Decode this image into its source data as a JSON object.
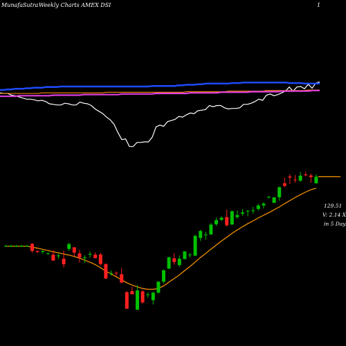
{
  "header": {
    "site": "MunafaSutra",
    "title": "Weekly Charts AMEX DSI",
    "marker": "1"
  },
  "price_panel": {
    "last_price": "129.51",
    "volume_text": "V: 2.14 X",
    "days_text": "in 5 Days"
  },
  "colors": {
    "background": "#000000",
    "up": "#00c000",
    "down": "#ff2020",
    "ema": "#ff9900",
    "line_white": "#ffffff",
    "line_blue": "#1e4bff",
    "line_magenta": "#e040e0",
    "line_orange": "#ff8c00"
  },
  "chart_data": [
    {
      "type": "line",
      "panel": "indicator",
      "series": [
        {
          "color": "#ffffff",
          "values": [
            52,
            51,
            51,
            48,
            47,
            45,
            43,
            41,
            41,
            40,
            38,
            39,
            37,
            33,
            32,
            31,
            31,
            34,
            33,
            31,
            31,
            36,
            34,
            33,
            30,
            24,
            20,
            16,
            10,
            5,
            -3,
            -17,
            -29,
            -28,
            -41,
            -41,
            -34,
            -34,
            -33,
            -33,
            -25,
            -7,
            -4,
            -6,
            2,
            4,
            6,
            11,
            10,
            14,
            17,
            16,
            21,
            22,
            23,
            30,
            28,
            30,
            30,
            26,
            24,
            25,
            25,
            26,
            32,
            32,
            34,
            37,
            41,
            39,
            48,
            50,
            47,
            49,
            52,
            55,
            62,
            55,
            62,
            63,
            59,
            67,
            60,
            69,
            71
          ]
        },
        {
          "color": "#1e4bff",
          "values": [
            57,
            57,
            58,
            58,
            59,
            59,
            59,
            60,
            60,
            61,
            61,
            61,
            62,
            62,
            62,
            62,
            63,
            63,
            63,
            63,
            63,
            63,
            63,
            63,
            63,
            63,
            63,
            63,
            63,
            63,
            63,
            63,
            63,
            63,
            63,
            63,
            63,
            63,
            63,
            63,
            64,
            64,
            64,
            64,
            64,
            64,
            64,
            65,
            65,
            66,
            66,
            66,
            67,
            67,
            68,
            68,
            68,
            68,
            68,
            68,
            68,
            69,
            69,
            69,
            70,
            70,
            70,
            70,
            70,
            70,
            70,
            70,
            70,
            70,
            70,
            70,
            69,
            69,
            69,
            69,
            68,
            68,
            68,
            68,
            68
          ]
        },
        {
          "color": "#ff8c00",
          "values": [
            51,
            51,
            51,
            51,
            51,
            51,
            51,
            51,
            51,
            51,
            51,
            52,
            52,
            52,
            52,
            52,
            52,
            52,
            52,
            52,
            52,
            52,
            52,
            52,
            52,
            52,
            52,
            52,
            53,
            53,
            53,
            53,
            53,
            53,
            53,
            53,
            53,
            53,
            53,
            53,
            53,
            53,
            53,
            53,
            53,
            53,
            53,
            53,
            53,
            54,
            54,
            54,
            54,
            54,
            54,
            54,
            54,
            54,
            54,
            54,
            55,
            55,
            55,
            55,
            55,
            55,
            55,
            55,
            55,
            55,
            56,
            56,
            56,
            56,
            56,
            56,
            56,
            56,
            56,
            56,
            56,
            57,
            57,
            57,
            57
          ]
        },
        {
          "color": "#e040e0",
          "values": [
            46,
            46,
            46,
            46,
            46,
            47,
            47,
            47,
            47,
            47,
            47,
            47,
            47,
            47,
            48,
            48,
            48,
            48,
            48,
            48,
            48,
            48,
            49,
            49,
            49,
            49,
            49,
            49,
            49,
            49,
            49,
            49,
            50,
            50,
            50,
            50,
            50,
            50,
            50,
            50,
            50,
            51,
            51,
            51,
            51,
            51,
            51,
            51,
            51,
            51,
            52,
            52,
            52,
            52,
            52,
            52,
            52,
            52,
            53,
            53,
            53,
            53,
            53,
            53,
            53,
            53,
            54,
            54,
            54,
            54,
            54,
            54,
            54,
            54,
            55,
            55,
            55,
            55,
            55,
            55,
            55,
            55,
            56,
            56,
            56
          ]
        }
      ]
    },
    {
      "type": "candlestick",
      "panel": "price",
      "series": [
        {
          "name": "price",
          "candles": [
            {
              "o": 90.5,
              "h": 91,
              "l": 89.9,
              "c": 90.5
            },
            {
              "o": 90.5,
              "h": 91,
              "l": 89.9,
              "c": 90.5
            },
            {
              "o": 90.5,
              "h": 91,
              "l": 89.9,
              "c": 90.5
            },
            {
              "o": 90.5,
              "h": 91,
              "l": 89.9,
              "c": 90.5
            },
            {
              "o": 90.5,
              "h": 91.1,
              "l": 90.1,
              "c": 90.5
            },
            {
              "o": 91.5,
              "h": 91.9,
              "l": 87.2,
              "c": 88
            },
            {
              "o": 88,
              "h": 88.1,
              "l": 86.9,
              "c": 87.5
            },
            {
              "o": 87.5,
              "h": 88.3,
              "l": 86.6,
              "c": 88
            },
            {
              "o": 86.8,
              "h": 87.4,
              "l": 86.3,
              "c": 86.8
            },
            {
              "o": 86.2,
              "h": 88.4,
              "l": 83.2,
              "c": 83.3
            },
            {
              "o": 85.4,
              "h": 86.7,
              "l": 84.2,
              "c": 85.8
            },
            {
              "o": 84.2,
              "h": 88.3,
              "l": 79.9,
              "c": 81.5
            },
            {
              "o": 89,
              "h": 92,
              "l": 88,
              "c": 91.4
            },
            {
              "o": 89.8,
              "h": 89.9,
              "l": 85.5,
              "c": 87.2
            },
            {
              "o": 86.8,
              "h": 88.6,
              "l": 82.3,
              "c": 84.8
            },
            {
              "o": 84.8,
              "h": 85.9,
              "l": 82.1,
              "c": 84.8
            },
            {
              "o": 86.6,
              "h": 87.7,
              "l": 84.7,
              "c": 86.6
            },
            {
              "o": 86.2,
              "h": 87.3,
              "l": 84.4,
              "c": 84.5
            },
            {
              "o": 86.3,
              "h": 87,
              "l": 80.8,
              "c": 81.6
            },
            {
              "o": 81.6,
              "h": 81.9,
              "l": 74.4,
              "c": 74.5
            },
            {
              "o": 77.2,
              "h": 78.5,
              "l": 75.9,
              "c": 77.2
            },
            {
              "o": 77.3,
              "h": 78,
              "l": 75.6,
              "c": 77.2
            },
            {
              "o": 76.6,
              "h": 79.7,
              "l": 72.2,
              "c": 72.5
            },
            {
              "o": 67.8,
              "h": 68.4,
              "l": 59.6,
              "c": 59.7
            },
            {
              "o": 68.3,
              "h": 70.5,
              "l": 66.8,
              "c": 66.8
            },
            {
              "o": 59.2,
              "h": 71.1,
              "l": 59.2,
              "c": 68.7
            },
            {
              "o": 68.2,
              "h": 68.9,
              "l": 62.1,
              "c": 62.8
            },
            {
              "o": 66.7,
              "h": 67.8,
              "l": 65.1,
              "c": 66.7
            },
            {
              "o": 63.9,
              "h": 68,
              "l": 61.8,
              "c": 67.6
            },
            {
              "o": 67.6,
              "h": 73.1,
              "l": 67,
              "c": 73
            },
            {
              "o": 73,
              "h": 78.9,
              "l": 72.1,
              "c": 78.5
            },
            {
              "o": 79.4,
              "h": 85.2,
              "l": 79.1,
              "c": 84.9
            },
            {
              "o": 84.4,
              "h": 86.9,
              "l": 81.3,
              "c": 82.6
            },
            {
              "o": 81.1,
              "h": 85.8,
              "l": 80.2,
              "c": 84.2
            },
            {
              "o": 84,
              "h": 87.8,
              "l": 84,
              "c": 87.8
            },
            {
              "o": 86.3,
              "h": 86.9,
              "l": 84.8,
              "c": 86.3
            },
            {
              "o": 85.7,
              "h": 96,
              "l": 85.6,
              "c": 95.4
            },
            {
              "o": 94.4,
              "h": 98.4,
              "l": 92.9,
              "c": 97.8
            },
            {
              "o": 96.1,
              "h": 97.4,
              "l": 93.6,
              "c": 96.1
            },
            {
              "o": 96.1,
              "h": 101.7,
              "l": 96,
              "c": 100.9
            },
            {
              "o": 101.1,
              "h": 104.4,
              "l": 100.3,
              "c": 103.1
            },
            {
              "o": 103.3,
              "h": 105,
              "l": 102.7,
              "c": 104.3
            },
            {
              "o": 104.6,
              "h": 108.3,
              "l": 100,
              "c": 100.6
            },
            {
              "o": 101,
              "h": 107.8,
              "l": 100.8,
              "c": 107.5
            },
            {
              "o": 104.6,
              "h": 107.8,
              "l": 103.7,
              "c": 105.6
            },
            {
              "o": 106.3,
              "h": 108.6,
              "l": 105.3,
              "c": 106.9
            },
            {
              "o": 107.7,
              "h": 108.1,
              "l": 105,
              "c": 107.7
            },
            {
              "o": 107.9,
              "h": 109.6,
              "l": 106.3,
              "c": 107.9
            },
            {
              "o": 108.6,
              "h": 111.2,
              "l": 107.7,
              "c": 110.3
            },
            {
              "o": 110.3,
              "h": 111.9,
              "l": 108.8,
              "c": 111.2
            },
            {
              "o": 114.6,
              "h": 114.8,
              "l": 113.7,
              "c": 114.6
            },
            {
              "o": 111.6,
              "h": 114.3,
              "l": 111.5,
              "c": 114.3
            },
            {
              "o": 114.3,
              "h": 119.4,
              "l": 112.7,
              "c": 119.3
            },
            {
              "o": 121.2,
              "h": 124,
              "l": 119.2,
              "c": 119.9
            },
            {
              "o": 124.5,
              "h": 125.6,
              "l": 120.8,
              "c": 124
            },
            {
              "o": 123,
              "h": 125.2,
              "l": 121.5,
              "c": 122.7
            },
            {
              "o": 122.5,
              "h": 126.7,
              "l": 121.8,
              "c": 124.9
            },
            {
              "o": 125.5,
              "h": 126.8,
              "l": 124.6,
              "c": 125.1
            },
            {
              "o": 125,
              "h": 125.9,
              "l": 121.5,
              "c": 124.2
            },
            {
              "o": 121.2,
              "h": 125.6,
              "l": 120.9,
              "c": 124.4
            }
          ]
        },
        {
          "name": "ema",
          "values": [
            90.3,
            90.3,
            90.3,
            90.3,
            90.3,
            89.9,
            89.4,
            88.8,
            88.2,
            87.6,
            87.1,
            86.5,
            86,
            85.3,
            84.5,
            83.5,
            82.5,
            81.3,
            79.8,
            78.1,
            76.8,
            75.3,
            73.9,
            72.4,
            71.3,
            70.4,
            69.6,
            69.2,
            69.2,
            69.7,
            70.9,
            72.7,
            74.5,
            76.3,
            78.4,
            80.4,
            82.6,
            84.8,
            86.8,
            88.9,
            90.9,
            92.9,
            94.7,
            96.6,
            98.3,
            99.9,
            101.4,
            102.8,
            104.2,
            105.5,
            106.8,
            108.2,
            109.6,
            111.2,
            112.7,
            114.2,
            115.6,
            116.9,
            118,
            118.8
          ]
        },
        {
          "name": "last",
          "values": [
            124.4,
            124.4,
            124.4
          ]
        }
      ]
    }
  ]
}
